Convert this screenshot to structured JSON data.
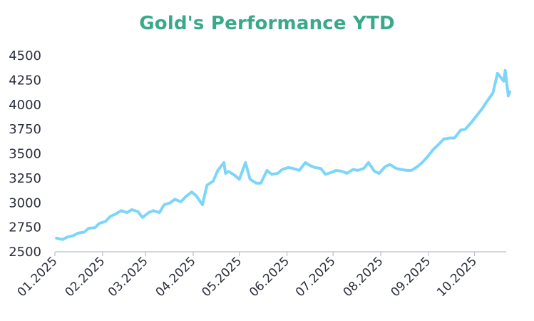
{
  "chart_data": {
    "type": "line",
    "title": "Gold's Performance YTD",
    "xlabel": "",
    "ylabel": "",
    "ylim": [
      2500,
      4500
    ],
    "yticks": [
      2500,
      2750,
      3000,
      3250,
      3500,
      3750,
      4000,
      4250,
      4500
    ],
    "xtick_labels": [
      "01.2025",
      "02.2025",
      "03.2025",
      "04.2025",
      "05.2025",
      "06.2025",
      "07.2025",
      "08.2025",
      "09.2025",
      "10.2025"
    ],
    "grid": false,
    "legend": "none",
    "colors": {
      "line": "#7dd6fa",
      "title": "#3aa986",
      "axis": "#b9bfc7",
      "text": "#2b2f3a"
    },
    "series": [
      {
        "x": [
          "2025-01-02",
          "2025-01-06",
          "2025-01-09",
          "2025-01-13",
          "2025-01-16",
          "2025-01-20",
          "2025-01-23",
          "2025-01-27",
          "2025-01-30",
          "2025-02-03",
          "2025-02-06",
          "2025-02-10",
          "2025-02-13",
          "2025-02-17",
          "2025-02-20",
          "2025-02-24",
          "2025-02-27",
          "2025-03-03",
          "2025-03-06",
          "2025-03-10",
          "2025-03-13",
          "2025-03-17",
          "2025-03-20",
          "2025-03-24",
          "2025-03-27",
          "2025-03-31",
          "2025-04-03",
          "2025-04-07",
          "2025-04-10",
          "2025-04-14",
          "2025-04-17",
          "2025-04-21",
          "2025-04-22",
          "2025-04-24",
          "2025-04-28",
          "2025-05-01",
          "2025-05-05",
          "2025-05-08",
          "2025-05-12",
          "2025-05-15",
          "2025-05-19",
          "2025-05-22",
          "2025-05-26",
          "2025-05-29",
          "2025-06-02",
          "2025-06-05",
          "2025-06-09",
          "2025-06-13",
          "2025-06-16",
          "2025-06-19",
          "2025-06-23",
          "2025-06-26",
          "2025-06-30",
          "2025-07-03",
          "2025-07-07",
          "2025-07-10",
          "2025-07-14",
          "2025-07-17",
          "2025-07-21",
          "2025-07-24",
          "2025-07-28",
          "2025-07-31",
          "2025-08-04",
          "2025-08-07",
          "2025-08-11",
          "2025-08-14",
          "2025-08-18",
          "2025-08-21",
          "2025-08-25",
          "2025-08-28",
          "2025-09-01",
          "2025-09-04",
          "2025-09-08",
          "2025-09-11",
          "2025-09-15",
          "2025-09-18",
          "2025-09-22",
          "2025-09-25",
          "2025-09-29",
          "2025-10-02",
          "2025-10-06",
          "2025-10-09",
          "2025-10-13",
          "2025-10-16",
          "2025-10-20",
          "2025-10-21",
          "2025-10-23",
          "2025-10-24"
        ],
        "values": [
          2640,
          2625,
          2650,
          2665,
          2690,
          2700,
          2740,
          2745,
          2790,
          2810,
          2860,
          2890,
          2920,
          2900,
          2930,
          2910,
          2850,
          2900,
          2920,
          2900,
          2980,
          3000,
          3035,
          3010,
          3060,
          3110,
          3070,
          2980,
          3180,
          3220,
          3330,
          3410,
          3300,
          3320,
          3280,
          3240,
          3410,
          3240,
          3200,
          3200,
          3330,
          3290,
          3300,
          3340,
          3360,
          3350,
          3330,
          3410,
          3380,
          3360,
          3350,
          3290,
          3310,
          3330,
          3320,
          3300,
          3340,
          3330,
          3350,
          3410,
          3320,
          3300,
          3370,
          3390,
          3350,
          3340,
          3330,
          3330,
          3370,
          3410,
          3480,
          3540,
          3600,
          3650,
          3660,
          3660,
          3740,
          3750,
          3820,
          3880,
          3960,
          4030,
          4120,
          4320,
          4240,
          4350,
          4090,
          4130
        ]
      }
    ]
  }
}
